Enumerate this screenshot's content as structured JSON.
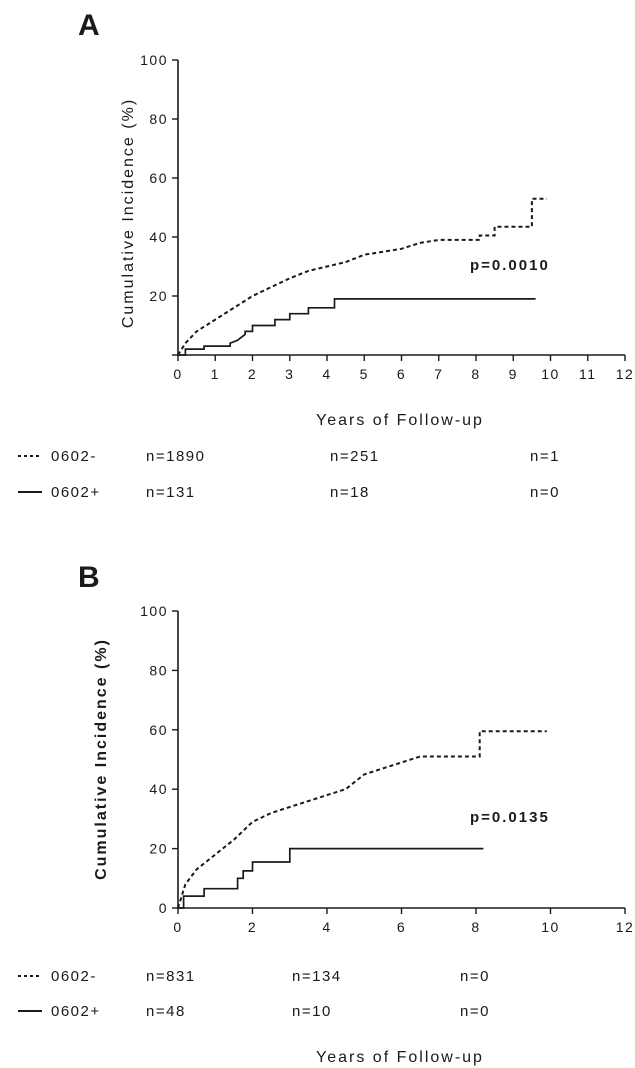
{
  "chart_data": [
    {
      "type": "line",
      "panel_label": "A",
      "xlabel": "Years of Follow-up",
      "ylabel": "Cumulative Incidence (%)",
      "xlim": [
        0,
        12
      ],
      "ylim": [
        0,
        100
      ],
      "x_ticks": [
        "0",
        "1",
        "2",
        "3",
        "4",
        "5",
        "6",
        "7",
        "8",
        "9",
        "10",
        "11",
        "12"
      ],
      "y_ticks": [
        "20",
        "40",
        "60",
        "80",
        "100"
      ],
      "grid": false,
      "annotation": "p=0.0010",
      "series": [
        {
          "name": "0602-",
          "style": "dashed",
          "points": [
            [
              0,
              0
            ],
            [
              0.2,
              4
            ],
            [
              0.5,
              8
            ],
            [
              1,
              12
            ],
            [
              1.5,
              16
            ],
            [
              2,
              20
            ],
            [
              2.5,
              23
            ],
            [
              3,
              26
            ],
            [
              3.5,
              28.5
            ],
            [
              4,
              30
            ],
            [
              4.5,
              31.5
            ],
            [
              5,
              34
            ],
            [
              5.5,
              35
            ],
            [
              6,
              36
            ],
            [
              6.5,
              38
            ],
            [
              7,
              39
            ],
            [
              7.5,
              39
            ],
            [
              8,
              39
            ],
            [
              8.1,
              39
            ],
            [
              8.1,
              40.5
            ],
            [
              8.5,
              40.5
            ],
            [
              8.5,
              43.5
            ],
            [
              9.5,
              43.5
            ],
            [
              9.5,
              53
            ],
            [
              9.9,
              53
            ]
          ]
        },
        {
          "name": "0602+",
          "style": "solid",
          "points": [
            [
              0,
              0
            ],
            [
              0.2,
              0
            ],
            [
              0.2,
              2
            ],
            [
              0.7,
              2
            ],
            [
              0.7,
              3
            ],
            [
              1.4,
              3
            ],
            [
              1.4,
              4
            ],
            [
              1.6,
              5
            ],
            [
              1.7,
              6
            ],
            [
              1.8,
              7
            ],
            [
              1.8,
              8
            ],
            [
              2,
              8
            ],
            [
              2,
              10
            ],
            [
              2.6,
              10
            ],
            [
              2.6,
              12
            ],
            [
              3,
              12
            ],
            [
              3,
              14
            ],
            [
              3.5,
              14
            ],
            [
              3.5,
              16
            ],
            [
              4.2,
              16
            ],
            [
              4.2,
              19
            ],
            [
              9.6,
              19
            ]
          ]
        }
      ],
      "risk_table": {
        "rows": [
          {
            "label": "0602-",
            "style": "dashed",
            "values": [
              "n=1890",
              "n=251",
              "n=1"
            ]
          },
          {
            "label": "0602+",
            "style": "solid",
            "values": [
              "n=131",
              "n=18",
              "n=0"
            ]
          }
        ]
      }
    },
    {
      "type": "line",
      "panel_label": "B",
      "xlabel": "Years of Follow-up",
      "ylabel": "Cumulative Incidence (%)",
      "xlim": [
        0,
        12
      ],
      "ylim": [
        0,
        100
      ],
      "x_ticks": [
        "0",
        "2",
        "4",
        "6",
        "8",
        "10",
        "12"
      ],
      "y_ticks": [
        "0",
        "20",
        "40",
        "60",
        "80",
        "100"
      ],
      "grid": false,
      "annotation": "p=0.0135",
      "series": [
        {
          "name": "0602-",
          "style": "dashed",
          "points": [
            [
              0,
              0
            ],
            [
              0.2,
              8
            ],
            [
              0.5,
              13
            ],
            [
              1,
              18
            ],
            [
              1.5,
              23
            ],
            [
              2,
              29
            ],
            [
              2.5,
              32
            ],
            [
              3,
              34
            ],
            [
              3.5,
              36
            ],
            [
              4,
              38
            ],
            [
              4.5,
              40
            ],
            [
              5,
              45
            ],
            [
              5.5,
              47
            ],
            [
              6,
              49
            ],
            [
              6.5,
              51
            ],
            [
              7,
              51
            ],
            [
              7.5,
              51
            ],
            [
              8.1,
              51
            ],
            [
              8.1,
              59.5
            ],
            [
              9.9,
              59.5
            ]
          ]
        },
        {
          "name": "0602+",
          "style": "solid",
          "points": [
            [
              0,
              0
            ],
            [
              0.15,
              0
            ],
            [
              0.15,
              4
            ],
            [
              0.7,
              4
            ],
            [
              0.7,
              6.5
            ],
            [
              1.6,
              6.5
            ],
            [
              1.6,
              10
            ],
            [
              1.75,
              10
            ],
            [
              1.75,
              12.5
            ],
            [
              2,
              12.5
            ],
            [
              2,
              15.5
            ],
            [
              3,
              15.5
            ],
            [
              3,
              20
            ],
            [
              8.2,
              20
            ]
          ]
        }
      ],
      "risk_table": {
        "rows": [
          {
            "label": "0602-",
            "style": "dashed",
            "values": [
              "n=831",
              "n=134",
              "n=0"
            ]
          },
          {
            "label": "0602+",
            "style": "solid",
            "values": [
              "n=48",
              "n=10",
              "n=0"
            ]
          }
        ]
      }
    }
  ]
}
